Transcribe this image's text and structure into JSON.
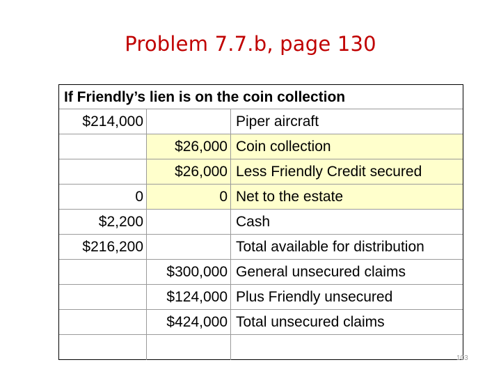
{
  "slide": {
    "title": "Problem 7.7.b, page 130",
    "page_number": "103"
  },
  "table": {
    "caption": "If Friendly’s lien is on the coin collection",
    "rows": [
      {
        "col1": "$214,000",
        "col2": "",
        "col3": "Piper aircraft",
        "highlight": false
      },
      {
        "col1": "",
        "col2": "$26,000",
        "col3": "Coin collection",
        "highlight": true
      },
      {
        "col1": "",
        "col2": "$26,000",
        "col3": "Less Friendly Credit secured",
        "highlight": true
      },
      {
        "col1": "0",
        "col2": "0",
        "col3": "Net to the estate",
        "highlight": true
      },
      {
        "col1": "$2,200",
        "col2": "",
        "col3": "Cash",
        "highlight": false
      },
      {
        "col1": "$216,200",
        "col2": "",
        "col3": "Total available for distribution",
        "highlight": false
      },
      {
        "col1": "",
        "col2": "$300,000",
        "col3": "General unsecured claims",
        "highlight": false
      },
      {
        "col1": "",
        "col2": "$124,000",
        "col3": "Plus Friendly unsecured",
        "highlight": false
      },
      {
        "col1": "",
        "col2": "$424,000",
        "col3": "Total unsecured claims",
        "highlight": false
      },
      {
        "col1": "",
        "col2": "",
        "col3": "",
        "highlight": false
      }
    ]
  },
  "colors": {
    "title": "#c00000",
    "highlight": "#ffffcc",
    "grid_line": "#9a9a9a"
  }
}
